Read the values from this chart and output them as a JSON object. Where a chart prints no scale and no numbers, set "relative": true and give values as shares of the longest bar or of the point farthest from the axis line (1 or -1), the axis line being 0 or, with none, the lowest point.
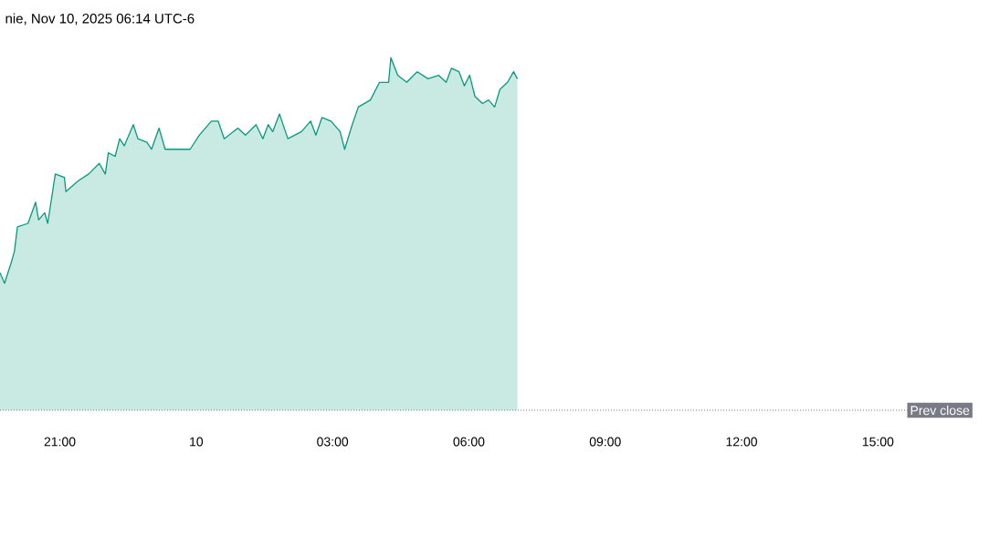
{
  "chart_data": {
    "type": "area",
    "title": "nie, Nov 10, 2025 06:14 UTC-6",
    "relative": true,
    "series": [
      {
        "color": "#089981",
        "x": [
          "2025-11-09T19:41",
          "2025-11-09T19:47",
          "2025-11-09T19:56",
          "2025-11-09T20:00",
          "2025-11-09T20:04",
          "2025-11-09T20:18",
          "2025-11-09T20:28",
          "2025-11-09T20:32",
          "2025-11-09T20:40",
          "2025-11-09T20:44",
          "2025-11-09T20:54",
          "2025-11-09T21:06",
          "2025-11-09T21:08",
          "2025-11-09T21:24",
          "2025-11-09T21:38",
          "2025-11-09T21:52",
          "2025-11-09T22:00",
          "2025-11-09T22:04",
          "2025-11-09T22:13",
          "2025-11-09T22:19",
          "2025-11-09T22:25",
          "2025-11-09T22:37",
          "2025-11-09T22:43",
          "2025-11-09T22:55",
          "2025-11-09T23:01",
          "2025-11-09T23:11",
          "2025-11-09T23:19",
          "2025-11-09T23:33",
          "2025-11-09T23:52",
          "2025-11-10T00:04",
          "2025-11-10T00:20",
          "2025-11-10T00:29",
          "2025-11-10T00:37",
          "2025-11-10T00:55",
          "2025-11-10T01:05",
          "2025-11-10T01:19",
          "2025-11-10T01:28",
          "2025-11-10T01:35",
          "2025-11-10T01:41",
          "2025-11-10T01:50",
          "2025-11-10T02:01",
          "2025-11-10T02:19",
          "2025-11-10T02:31",
          "2025-11-10T02:38",
          "2025-11-10T02:46",
          "2025-11-10T02:58",
          "2025-11-10T03:10",
          "2025-11-10T03:16",
          "2025-11-10T03:26",
          "2025-11-10T03:34",
          "2025-11-10T03:50",
          "2025-11-10T04:02",
          "2025-11-10T04:14",
          "2025-11-10T04:17",
          "2025-11-10T04:26",
          "2025-11-10T04:38",
          "2025-11-10T04:47",
          "2025-11-10T04:52",
          "2025-11-10T05:06",
          "2025-11-10T05:20",
          "2025-11-10T05:30",
          "2025-11-10T05:37",
          "2025-11-10T05:47",
          "2025-11-10T05:54",
          "2025-11-10T06:01",
          "2025-11-10T06:08",
          "2025-11-10T06:18",
          "2025-11-10T06:26",
          "2025-11-10T06:34",
          "2025-11-10T06:41",
          "2025-11-10T06:51",
          "2025-11-10T06:59",
          "2025-11-10T07:04"
        ],
        "values": [
          0.39,
          0.36,
          0.42,
          0.45,
          0.52,
          0.53,
          0.59,
          0.54,
          0.56,
          0.53,
          0.67,
          0.66,
          0.62,
          0.65,
          0.67,
          0.7,
          0.67,
          0.73,
          0.72,
          0.77,
          0.75,
          0.81,
          0.77,
          0.76,
          0.74,
          0.8,
          0.74,
          0.74,
          0.74,
          0.78,
          0.82,
          0.82,
          0.77,
          0.8,
          0.78,
          0.81,
          0.77,
          0.81,
          0.79,
          0.84,
          0.77,
          0.79,
          0.82,
          0.78,
          0.83,
          0.82,
          0.79,
          0.74,
          0.81,
          0.86,
          0.88,
          0.93,
          0.93,
          1.0,
          0.95,
          0.93,
          0.95,
          0.96,
          0.94,
          0.95,
          0.93,
          0.97,
          0.96,
          0.92,
          0.95,
          0.89,
          0.87,
          0.88,
          0.86,
          0.91,
          0.93,
          0.96,
          0.94
        ]
      }
    ],
    "xlim": [
      "2025-11-09T19:41",
      "2025-11-10T17:05"
    ],
    "xticks": [
      {
        "value": "2025-11-09T21:00",
        "label": "21:00"
      },
      {
        "value": "2025-11-10T00:00",
        "label": "10"
      },
      {
        "value": "2025-11-10T03:00",
        "label": "03:00"
      },
      {
        "value": "2025-11-10T06:00",
        "label": "06:00"
      },
      {
        "value": "2025-11-10T09:00",
        "label": "09:00"
      },
      {
        "value": "2025-11-10T12:00",
        "label": "12:00"
      },
      {
        "value": "2025-11-10T15:00",
        "label": "15:00"
      }
    ],
    "ref_lines": [
      {
        "axis": "y",
        "value": 0,
        "label": "Prev close",
        "color": "#787b86",
        "line_style": "dotted"
      }
    ],
    "grid": false
  }
}
